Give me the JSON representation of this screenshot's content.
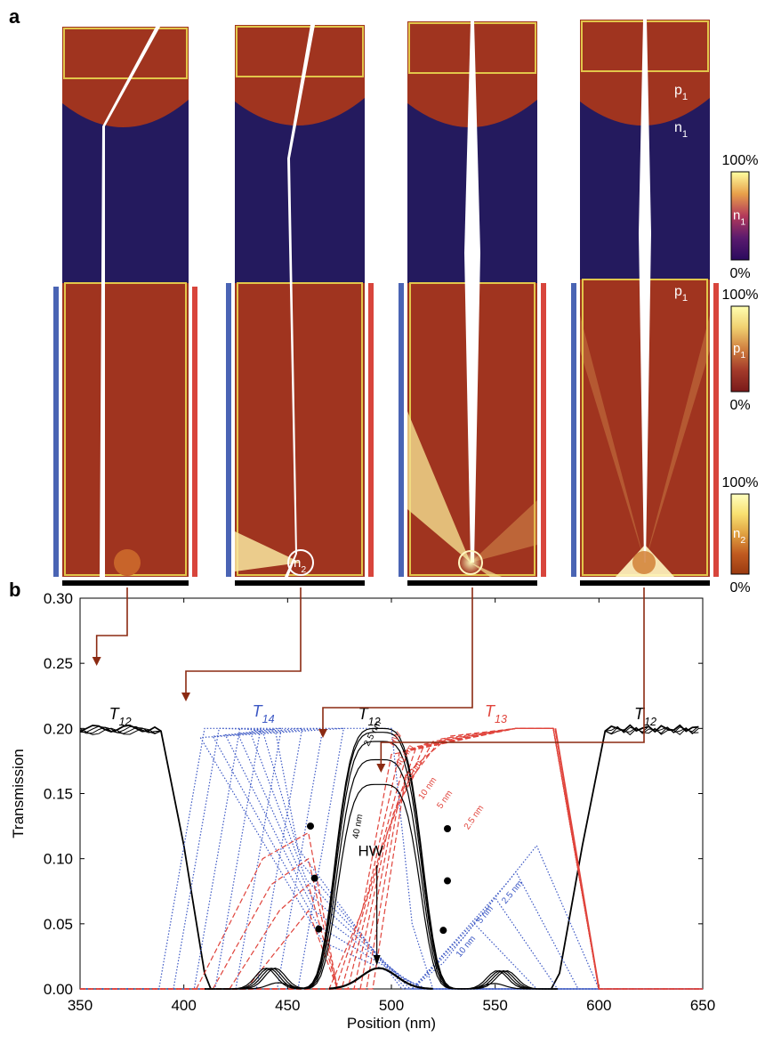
{
  "panels": {
    "a_label": "a",
    "b_label": "b"
  },
  "simulations": {
    "region_labels": [
      "p1",
      "n1",
      "p1"
    ],
    "inclusion_label": "n2",
    "colorbars": [
      {
        "label": "n1",
        "top": "100%",
        "bottom": "0%",
        "colors": [
          "#2a0a5e",
          "#5b1a6e",
          "#b33a5a",
          "#e8a04a",
          "#ffffa0"
        ]
      },
      {
        "label": "p1",
        "top": "100%",
        "bottom": "0%",
        "colors": [
          "#7a1a1a",
          "#a33a2a",
          "#d08040",
          "#f0d070",
          "#ffffb0"
        ]
      },
      {
        "label": "n2",
        "top": "100%",
        "bottom": "0%",
        "colors": [
          "#9a3a10",
          "#c05a20",
          "#e0a040",
          "#f8e070",
          "#ffffc0"
        ]
      }
    ],
    "colors": {
      "p_region": "#a0341f",
      "n_region": "#241a5e",
      "beam": "#ffffff",
      "box": "#e2c64a",
      "left_bar": "#4a64b4",
      "right_bar": "#d8453c",
      "arrow": "#8b2a12"
    }
  },
  "chart_data": {
    "type": "line",
    "xlabel": "Position (nm)",
    "ylabel": "Transmission",
    "xlim": [
      350,
      650
    ],
    "ylim": [
      0,
      0.3
    ],
    "xticks": [
      350,
      400,
      450,
      500,
      550,
      600,
      650
    ],
    "yticks": [
      "0.00",
      "0.05",
      "0.10",
      "0.15",
      "0.20",
      "0.25",
      "0.30"
    ],
    "arrow_targets_x": [
      358,
      401,
      467,
      495
    ],
    "curve_labels": {
      "T12_left": "T12",
      "T14": "T14",
      "T12_center": "T12",
      "T13": "T13",
      "T12_right": "T12",
      "HW_center": "HW",
      "HW_red": "HW"
    },
    "inline_labels": {
      "black": [
        "2.5 nm",
        "40 nm"
      ],
      "red": [
        "40 nm",
        "20 nm",
        "10 nm",
        "5 nm",
        "2.5 nm"
      ],
      "blue": [
        "2.5 nm",
        "5 nm",
        "10 nm"
      ]
    },
    "series": [
      {
        "name": "T12",
        "color": "#000000",
        "width": [
          2.4,
          1.4,
          1.2,
          1.2,
          1.2,
          1.2,
          1.2
        ]
      },
      {
        "name": "T14",
        "color": "#3b57c4",
        "dash": "1.5,2"
      },
      {
        "name": "T13",
        "color": "#e0443c",
        "dash": "6,3"
      }
    ],
    "black_widths_nm": [
      0,
      2.5,
      5,
      10,
      20,
      40
    ],
    "black_peak": [
      0.016,
      0.2,
      0.197,
      0.19,
      0.176,
      0.157
    ],
    "black_width_scale": [
      0.0,
      1.0,
      0.97,
      0.93,
      0.88,
      0.82
    ],
    "blue_rise_starts": [
      388,
      395,
      405,
      415,
      425,
      435,
      445,
      455
    ],
    "red_fall_ends": [
      502,
      512,
      522,
      532,
      542,
      552,
      562,
      572
    ],
    "dots": [
      [
        461,
        0.125
      ],
      [
        463,
        0.085
      ],
      [
        465,
        0.046
      ],
      [
        527,
        0.123
      ],
      [
        527,
        0.083
      ],
      [
        525,
        0.045
      ]
    ]
  }
}
